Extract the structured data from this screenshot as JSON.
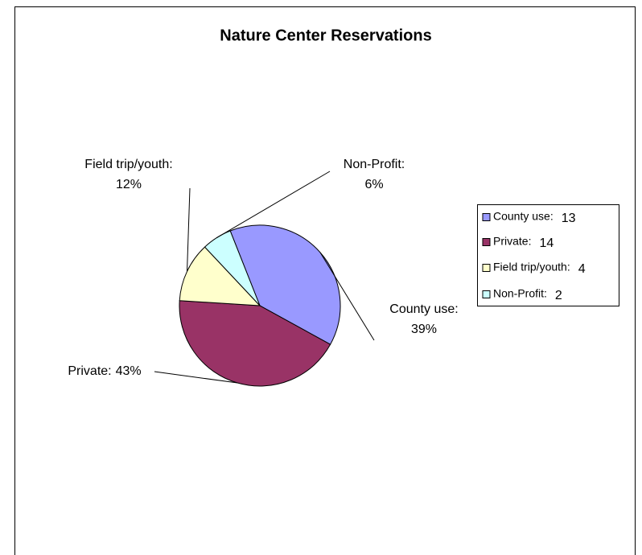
{
  "chart_data": {
    "type": "pie",
    "title": "Nature Center Reservations",
    "categories": [
      "County use:",
      "Private:",
      "Field trip/youth:",
      "Non-Profit:"
    ],
    "values": [
      39,
      43,
      12,
      6
    ],
    "value_labels": [
      "39%",
      "43%",
      "12%",
      "6%"
    ],
    "legend_counts": [
      13,
      14,
      4,
      2
    ],
    "colors": [
      "#9999ff",
      "#993366",
      "#ffffcc",
      "#ccffff"
    ],
    "legend": "right"
  }
}
